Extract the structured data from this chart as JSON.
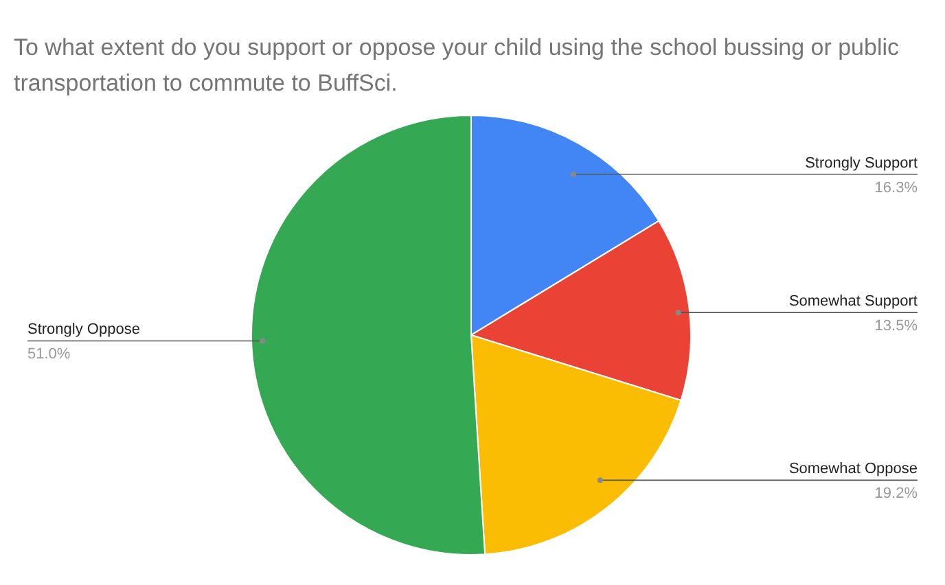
{
  "chart_data": {
    "type": "pie",
    "title": "To what extent do you support or oppose your child using the school bussing or public transportation to commute to BuffSci.",
    "categories": [
      "Strongly Support",
      "Somewhat Support",
      "Somewhat Oppose",
      "Strongly Oppose"
    ],
    "values": [
      16.3,
      13.5,
      19.2,
      51.0
    ],
    "colors": [
      "#4285f4",
      "#ea4335",
      "#fbbc04",
      "#34a853"
    ],
    "value_labels": [
      "16.3%",
      "13.5%",
      "19.2%",
      "51.0%"
    ]
  }
}
